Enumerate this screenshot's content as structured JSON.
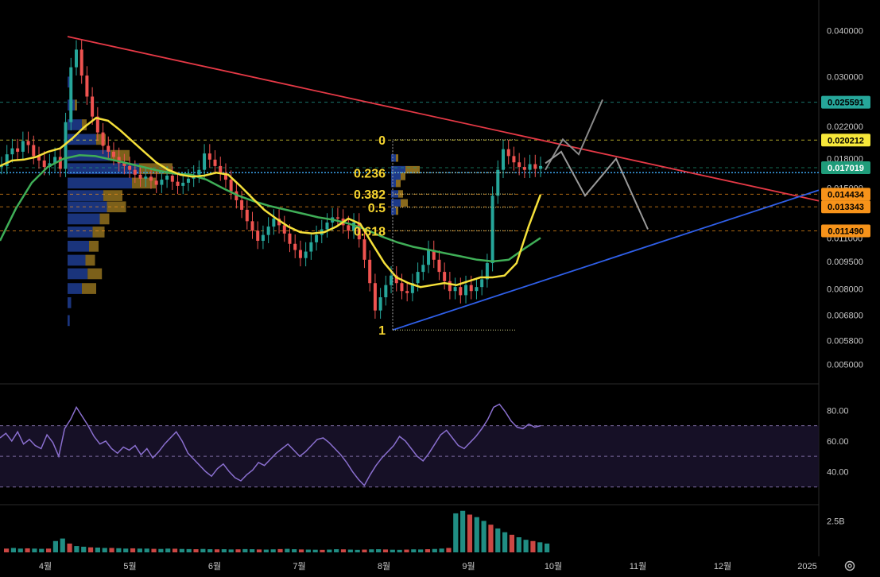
{
  "chart_data": {
    "type": "candlestick",
    "price_axis": {
      "scale": "log",
      "ticks": [
        "0.040000",
        "0.030000",
        "0.022000",
        "0.018000",
        "0.015000",
        "0.011000",
        "0.009500",
        "0.008000",
        "0.006800",
        "0.005800",
        "0.005000"
      ],
      "tick_values": [
        0.04,
        0.03,
        0.022,
        0.018,
        0.015,
        0.011,
        0.0095,
        0.008,
        0.0068,
        0.0058,
        0.005
      ],
      "range": [
        0.005,
        0.046
      ]
    },
    "time_axis": {
      "labels": [
        "4월",
        "5월",
        "6월",
        "7월",
        "8월",
        "9월",
        "10월",
        "11월",
        "12월",
        "2025"
      ]
    },
    "price_tags": [
      {
        "label": "0.025591",
        "value": 0.025591,
        "color": "#26a69a",
        "text_color": "#000000"
      },
      {
        "label": "0.020212",
        "value": 0.020212,
        "color": "#f7e83a",
        "text_color": "#000000"
      },
      {
        "label": "0.017019",
        "value": 0.017019,
        "color": "#1f9c7a",
        "text_color": "#ffffff"
      },
      {
        "label": "0.014434",
        "value": 0.014434,
        "color": "#f7931a",
        "text_color": "#000000"
      },
      {
        "label": "0.013343",
        "value": 0.013343,
        "color": "#f7931a",
        "text_color": "#000000"
      },
      {
        "label": "0.011490",
        "value": 0.01149,
        "color": "#f7931a",
        "text_color": "#000000"
      }
    ],
    "fib_levels": [
      {
        "label": "0",
        "value": 0.02025
      },
      {
        "label": "0.236",
        "value": 0.0165
      },
      {
        "label": "0.382",
        "value": 0.01445
      },
      {
        "label": "0.5",
        "value": 0.0133
      },
      {
        "label": "0.618",
        "value": 0.0115
      },
      {
        "label": "1",
        "value": 0.0062
      }
    ],
    "ohlc_close": [
      0.0172,
      0.0185,
      0.0192,
      0.0188,
      0.0201,
      0.0196,
      0.0183,
      0.0178,
      0.0171,
      0.0175,
      0.0182,
      0.0169,
      0.0226,
      0.0318,
      0.0355,
      0.0302,
      0.0265,
      0.0234,
      0.0212,
      0.0195,
      0.0188,
      0.0182,
      0.0175,
      0.0172,
      0.0168,
      0.0163,
      0.0159,
      0.0161,
      0.0157,
      0.0153,
      0.0158,
      0.0162,
      0.0156,
      0.0152,
      0.0155,
      0.0159,
      0.0163,
      0.0168,
      0.0186,
      0.0179,
      0.0172,
      0.0165,
      0.0158,
      0.0147,
      0.0139,
      0.0131,
      0.0122,
      0.0115,
      0.0108,
      0.0112,
      0.0118,
      0.0124,
      0.0119,
      0.0113,
      0.0106,
      0.0102,
      0.0097,
      0.0101,
      0.0107,
      0.0112,
      0.0116,
      0.0121,
      0.0125,
      0.0124,
      0.0119,
      0.0115,
      0.0121,
      0.0109,
      0.0096,
      0.0083,
      0.007,
      0.0076,
      0.0082,
      0.0087,
      0.0083,
      0.0079,
      0.0078,
      0.0083,
      0.0089,
      0.0093,
      0.0102,
      0.0096,
      0.0089,
      0.0084,
      0.0079,
      0.0081,
      0.0077,
      0.0082,
      0.0079,
      0.0081,
      0.0085,
      0.0094,
      0.0143,
      0.0168,
      0.0191,
      0.0183,
      0.0176,
      0.0171,
      0.0168,
      0.0174,
      0.0169,
      0.0172
    ],
    "ema_yellow": [
      0.0172,
      0.0178,
      0.0179,
      0.0182,
      0.0188,
      0.0192,
      0.0204,
      0.0219,
      0.0232,
      0.0228,
      0.0215,
      0.0201,
      0.0188,
      0.0176,
      0.0168,
      0.0163,
      0.0161,
      0.0162,
      0.0165,
      0.0163,
      0.0152,
      0.0141,
      0.0131,
      0.0124,
      0.0118,
      0.0114,
      0.0113,
      0.0114,
      0.0118,
      0.0124,
      0.012,
      0.0106,
      0.0094,
      0.0086,
      0.0083,
      0.0081,
      0.0082,
      0.0083,
      0.0082,
      0.0084,
      0.0086,
      0.0086,
      0.0087,
      0.0094,
      0.0118,
      0.0144
    ],
    "ema_green": [
      0.0108,
      0.0132,
      0.0155,
      0.0171,
      0.018,
      0.0184,
      0.0183,
      0.0179,
      0.0175,
      0.0171,
      0.0167,
      0.0164,
      0.0163,
      0.0158,
      0.015,
      0.0143,
      0.0138,
      0.0134,
      0.0131,
      0.0128,
      0.0125,
      0.0123,
      0.012,
      0.0116,
      0.0111,
      0.0107,
      0.0104,
      0.0102,
      0.01,
      0.0098,
      0.0096,
      0.0095,
      0.0096,
      0.0103,
      0.011
    ],
    "trendlines": [
      {
        "name": "resistance",
        "color": "#e53946"
      },
      {
        "name": "support",
        "color": "#2f5fe8"
      }
    ],
    "rsi": {
      "ticks": [
        "80.00",
        "60.00",
        "40.00"
      ],
      "tick_values": [
        80,
        60,
        40
      ],
      "bands": [
        70,
        50,
        30
      ],
      "range": [
        20,
        90
      ],
      "values": [
        62,
        65,
        60,
        66,
        58,
        61,
        57,
        55,
        64,
        59,
        50,
        68,
        74,
        82,
        76,
        70,
        63,
        58,
        60,
        55,
        52,
        56,
        54,
        57,
        51,
        55,
        49,
        53,
        58,
        62,
        66,
        60,
        52,
        48,
        44,
        40,
        37,
        42,
        45,
        40,
        36,
        34,
        38,
        41,
        46,
        44,
        48,
        52,
        55,
        58,
        54,
        50,
        53,
        57,
        61,
        62,
        59,
        55,
        51,
        46,
        40,
        35,
        31,
        38,
        44,
        49,
        53,
        57,
        63,
        60,
        55,
        50,
        47,
        52,
        58,
        64,
        67,
        62,
        57,
        55,
        59,
        63,
        68,
        74,
        82,
        84,
        79,
        73,
        69,
        68,
        71,
        69,
        70
      ]
    },
    "volume": {
      "tick": "2.5B",
      "tick_value": 2.5,
      "values": [
        0.3,
        0.35,
        0.3,
        0.32,
        0.3,
        0.28,
        0.3,
        0.9,
        1.1,
        0.7,
        0.5,
        0.45,
        0.4,
        0.38,
        0.35,
        0.35,
        0.33,
        0.3,
        0.32,
        0.3,
        0.3,
        0.28,
        0.27,
        0.3,
        0.29,
        0.27,
        0.26,
        0.25,
        0.27,
        0.25,
        0.24,
        0.25,
        0.23,
        0.24,
        0.26,
        0.25,
        0.23,
        0.22,
        0.24,
        0.26,
        0.28,
        0.25,
        0.23,
        0.22,
        0.21,
        0.2,
        0.22,
        0.25,
        0.24,
        0.22,
        0.2,
        0.22,
        0.24,
        0.25,
        0.23,
        0.21,
        0.2,
        0.22,
        0.24,
        0.23,
        0.25,
        0.27,
        0.3,
        0.35,
        3.1,
        3.3,
        3.0,
        2.8,
        2.5,
        2.2,
        1.9,
        1.6,
        1.4,
        1.2,
        1.0,
        0.9,
        0.8,
        0.7
      ]
    }
  }
}
